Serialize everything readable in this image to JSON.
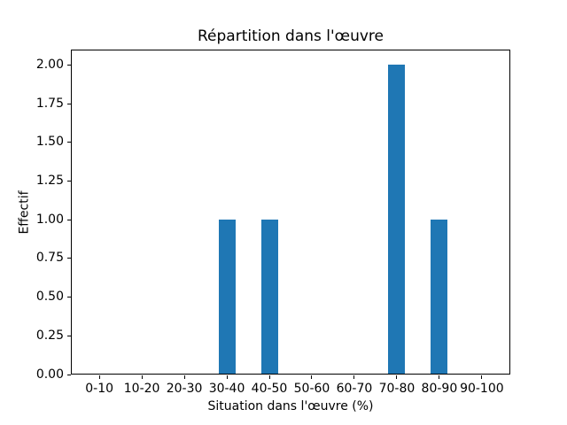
{
  "chart_data": {
    "type": "bar",
    "title": "Répartition dans l'œuvre",
    "xlabel": "Situation dans l'œuvre (%)",
    "ylabel": "Effectif",
    "categories": [
      "0-10",
      "10-20",
      "20-30",
      "30-40",
      "40-50",
      "50-60",
      "60-70",
      "70-80",
      "80-90",
      "90-100"
    ],
    "values": [
      0,
      0,
      0,
      1,
      1,
      0,
      0,
      2,
      1,
      0
    ],
    "yticks": [
      "0.00",
      "0.25",
      "0.50",
      "0.75",
      "1.00",
      "1.25",
      "1.50",
      "1.75",
      "2.00"
    ],
    "ylim": [
      0,
      2.1
    ],
    "grid": false,
    "legend": null,
    "bar_color": "#1f77b4",
    "background_color": "#ffffff",
    "axis_color": "#000000"
  }
}
